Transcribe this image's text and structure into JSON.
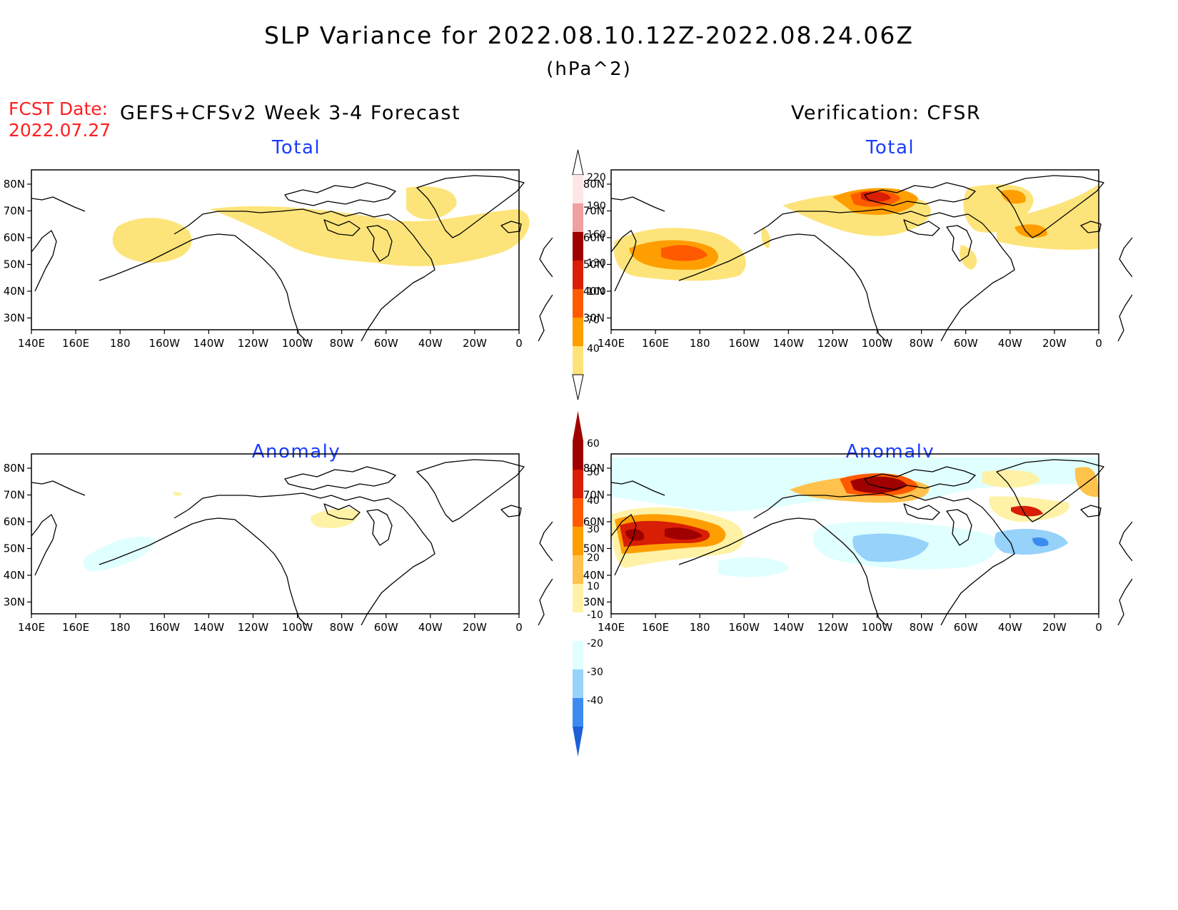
{
  "header": {
    "title": "SLP Variance for 2022.08.10.12Z-2022.08.24.06Z",
    "units": "(hPa^2)",
    "fcst_label": "FCST Date:",
    "fcst_date": "2022.07.27",
    "left_column": "GEFS+CFSv2 Week 3-4 Forecast",
    "right_column": "Verification: CFSR"
  },
  "panels": [
    {
      "id": "fcst-total",
      "title": "Total"
    },
    {
      "id": "verif-total",
      "title": "Total"
    },
    {
      "id": "fcst-anomaly",
      "title": "Anomaly"
    },
    {
      "id": "verif-anomaly",
      "title": "Anomaly"
    }
  ],
  "axes": {
    "lon_labels": [
      "140E",
      "160E",
      "180",
      "160W",
      "140W",
      "120W",
      "100W",
      "80W",
      "60W",
      "40W",
      "20W",
      "0"
    ],
    "lat_labels": [
      "80N",
      "70N",
      "60N",
      "50N",
      "40N",
      "30N"
    ]
  },
  "colorbars": {
    "total": {
      "levels": [
        "220",
        "190",
        "160",
        "130",
        "100",
        "70",
        "40"
      ],
      "colors": [
        "#fde6e6",
        "#f0a0a0",
        "#a00000",
        "#d81e05",
        "#ff5a00",
        "#ff9e00",
        "#fde47a"
      ]
    },
    "anomaly": {
      "levels": [
        "60",
        "50",
        "40",
        "30",
        "20",
        "10",
        "-10",
        "-20",
        "-30",
        "-40"
      ],
      "colors_top": [
        "#a00000",
        "#d81e05",
        "#ff5a00",
        "#ff9e00",
        "#ffc24d",
        "#fff2a6"
      ],
      "colors_bottom": [
        "#e0ffff",
        "#96d2fa",
        "#3c8cf0",
        "#1e60d8"
      ]
    }
  },
  "colors": {
    "light_yellow": "#fde47a",
    "orange": "#ff9e00",
    "dark_orange": "#ff5a00",
    "red": "#d81e05",
    "dark_red": "#a00000",
    "light_cyan": "#e0ffff",
    "light_blue": "#96d2fa",
    "blue": "#3c8cf0",
    "title_blue": "#1a3cff",
    "fcst_red": "#ff2020"
  }
}
